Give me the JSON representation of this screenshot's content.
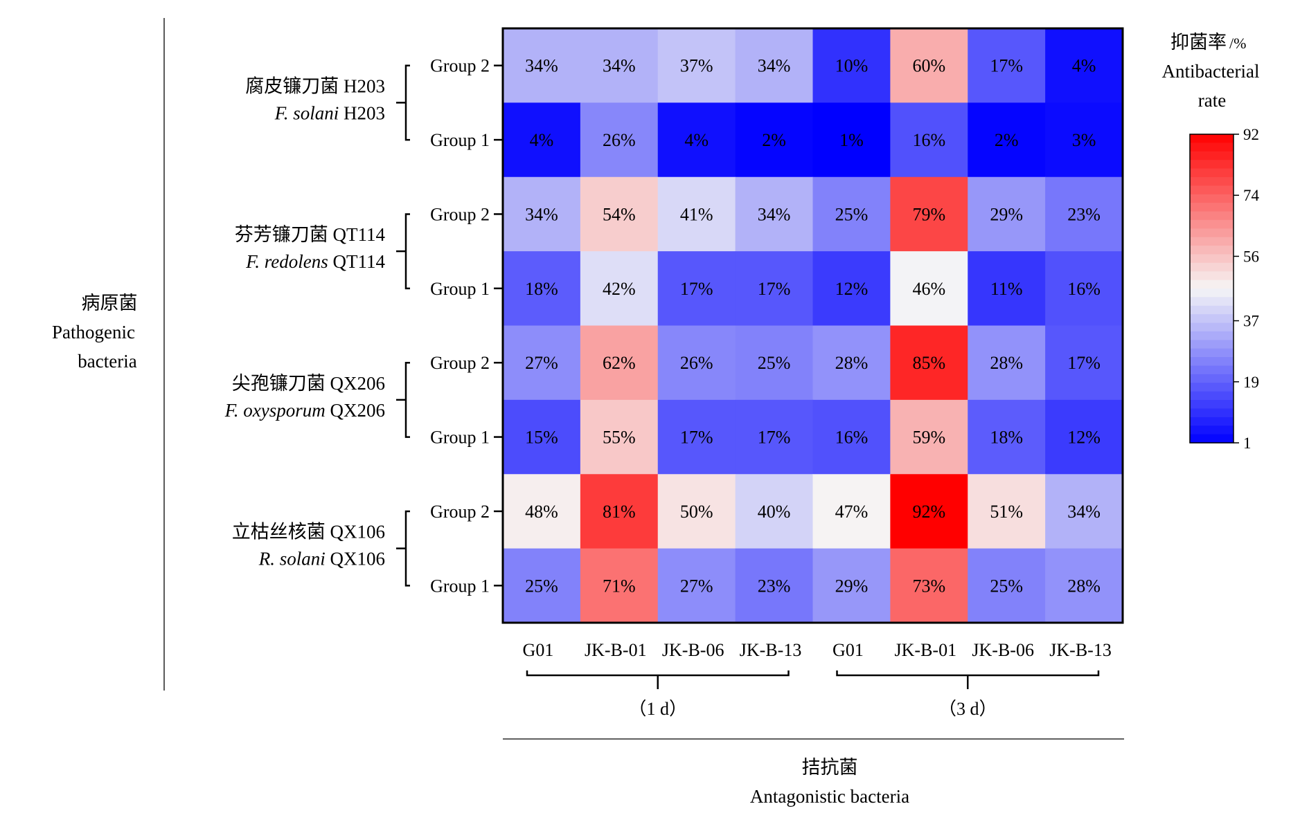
{
  "chart_data": {
    "type": "heatmap",
    "value_format": "percent",
    "columns": [
      "G01",
      "JK-B-01",
      "JK-B-06",
      "JK-B-13",
      "G01",
      "JK-B-01",
      "JK-B-06",
      "JK-B-13"
    ],
    "column_groups": [
      {
        "label": "（1 d）",
        "span": [
          0,
          3
        ]
      },
      {
        "label": "（3 d）",
        "span": [
          4,
          7
        ]
      }
    ],
    "rows": [
      "Group 2",
      "Group 1",
      "Group 2",
      "Group 1",
      "Group 2",
      "Group 1",
      "Group 2",
      "Group 1"
    ],
    "row_groups": [
      {
        "label_cn": "腐皮镰刀菌 H203",
        "label_latin_italic": "F. solani",
        "label_latin_suffix": " H203",
        "span": [
          0,
          1
        ]
      },
      {
        "label_cn": "芬芳镰刀菌 QT114",
        "label_latin_italic": "F. redolens",
        "label_latin_suffix": " QT114",
        "span": [
          2,
          3
        ]
      },
      {
        "label_cn": "尖孢镰刀菌 QX206",
        "label_latin_italic": "F. oxysporum",
        "label_latin_suffix": " QX206",
        "span": [
          4,
          5
        ]
      },
      {
        "label_cn": "立枯丝核菌 QX106",
        "label_latin_italic": "R. solani",
        "label_latin_suffix": " QX106",
        "span": [
          6,
          7
        ]
      }
    ],
    "values": [
      [
        34,
        34,
        37,
        34,
        10,
        60,
        17,
        4
      ],
      [
        4,
        26,
        4,
        2,
        1,
        16,
        2,
        3
      ],
      [
        34,
        54,
        41,
        34,
        25,
        79,
        29,
        23
      ],
      [
        18,
        42,
        17,
        17,
        12,
        46,
        11,
        16
      ],
      [
        27,
        62,
        26,
        25,
        28,
        85,
        28,
        17
      ],
      [
        15,
        55,
        17,
        17,
        16,
        59,
        18,
        12
      ],
      [
        48,
        81,
        50,
        40,
        47,
        92,
        51,
        34
      ],
      [
        25,
        71,
        27,
        23,
        29,
        73,
        25,
        28
      ]
    ],
    "xlabel_cn": "拮抗菌",
    "xlabel_en": "Antagonistic bacteria",
    "ylabel_cn": "病原菌",
    "ylabel_en_line1": "Pathogenic",
    "ylabel_en_line2": "bacteria",
    "colorbar": {
      "title_cn": "抑菌率",
      "title_unit": "/%",
      "title_en_line1": "Antibacterial",
      "title_en_line2": "rate",
      "range": [
        1,
        92
      ],
      "ticks": [
        1,
        19,
        37,
        56,
        74,
        92
      ],
      "colors": {
        "low": "#0000ff",
        "mid": "#f6f6f6",
        "high": "#ff0000"
      },
      "mid_value": 46.5
    }
  }
}
